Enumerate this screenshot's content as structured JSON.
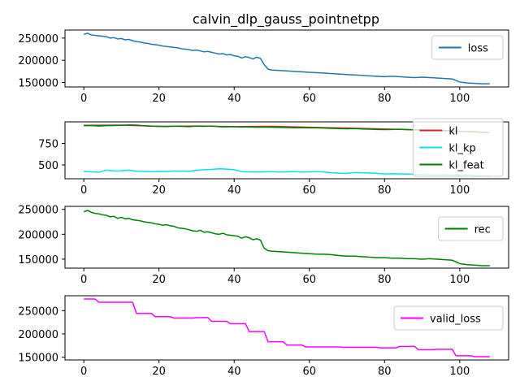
{
  "chart_data": {
    "title": "calvin_dlp_gauss_pointnetpp",
    "panels": [
      {
        "type": "line",
        "name": "loss-panel",
        "xlim": [
          -5,
          113
        ],
        "ylim": [
          140000,
          268000
        ],
        "xticks": [
          0,
          20,
          40,
          60,
          80,
          100
        ],
        "xtick_labels": [
          "0",
          "20",
          "40",
          "60",
          "80",
          "100"
        ],
        "yticks": [
          150000,
          200000,
          250000
        ],
        "ytick_labels": [
          "150000",
          "200000",
          "250000"
        ],
        "legend_position": "upper right",
        "series": [
          {
            "name": "loss",
            "color": "#1f77b4",
            "x": [
              0,
              1,
              2,
              3,
              4,
              5,
              6,
              7,
              8,
              9,
              10,
              11,
              12,
              13,
              14,
              15,
              16,
              17,
              18,
              19,
              20,
              21,
              22,
              23,
              24,
              25,
              26,
              27,
              28,
              29,
              30,
              31,
              32,
              33,
              34,
              35,
              36,
              37,
              38,
              39,
              40,
              41,
              42,
              43,
              44,
              45,
              46,
              47,
              48,
              49,
              50,
              52,
              54,
              56,
              58,
              60,
              62,
              64,
              66,
              68,
              70,
              72,
              74,
              76,
              78,
              80,
              82,
              84,
              86,
              88,
              90,
              92,
              94,
              96,
              98,
              100,
              102,
              104,
              106,
              108
            ],
            "y": [
              258000,
              261000,
              257000,
              256000,
              255000,
              254000,
              253000,
              250000,
              251000,
              248000,
              249000,
              246000,
              247000,
              244000,
              242000,
              241000,
              239000,
              238000,
              236000,
              235000,
              234000,
              232000,
              231000,
              230000,
              229000,
              228000,
              226000,
              225000,
              224000,
              222000,
              223000,
              221000,
              219000,
              220000,
              218000,
              216000,
              214000,
              215000,
              212000,
              213000,
              210000,
              209000,
              205000,
              208000,
              206000,
              203000,
              207000,
              204000,
              190000,
              180000,
              178000,
              177000,
              176000,
              175000,
              174000,
              173000,
              172000,
              171000,
              170000,
              169000,
              168000,
              167000,
              166000,
              165000,
              164000,
              163000,
              164000,
              163000,
              162000,
              161000,
              162000,
              161000,
              160000,
              159000,
              158000,
              151000,
              149000,
              148000,
              147000,
              147000
            ]
          }
        ]
      },
      {
        "type": "line",
        "name": "kl-panel",
        "xlim": [
          -5,
          113
        ],
        "ylim": [
          340,
          1000
        ],
        "xticks": [
          0,
          20,
          40,
          60,
          80,
          100
        ],
        "xtick_labels": [
          "0",
          "20",
          "40",
          "60",
          "80",
          "100"
        ],
        "yticks": [
          500,
          750
        ],
        "ytick_labels": [
          "500",
          "750"
        ],
        "legend_position": "upper right",
        "series": [
          {
            "name": "kl",
            "color": "#d62728",
            "x": [
              0,
              10,
              20,
              30,
              40,
              50,
              60,
              70,
              80,
              90,
              100,
              108
            ],
            "y": [
              960,
              962,
              948,
              952,
              945,
              948,
              938,
              928,
              918,
              905,
              890,
              876
            ]
          },
          {
            "name": "kl_kp",
            "color": "#00e5ee",
            "x": [
              0,
              2,
              4,
              6,
              8,
              10,
              12,
              14,
              16,
              18,
              20,
              22,
              24,
              26,
              28,
              30,
              32,
              34,
              36,
              38,
              40,
              42,
              44,
              46,
              48,
              50,
              52,
              54,
              56,
              58,
              60,
              62,
              64,
              66,
              68,
              70,
              72,
              74,
              76,
              78,
              80,
              82,
              84,
              86,
              88,
              90,
              92,
              94,
              96,
              98,
              100,
              102,
              104,
              106,
              108
            ],
            "y": [
              425,
              420,
              415,
              440,
              430,
              432,
              440,
              428,
              425,
              422,
              425,
              424,
              430,
              428,
              426,
              438,
              445,
              448,
              455,
              452,
              445,
              422,
              420,
              418,
              420,
              422,
              418,
              420,
              422,
              418,
              420,
              422,
              418,
              410,
              404,
              402,
              412,
              410,
              406,
              402,
              395,
              398,
              396,
              394,
              392,
              392,
              388,
              385,
              390,
              384,
              380,
              388,
              374,
              372,
              370
            ]
          },
          {
            "name": "kl_feat",
            "color": "#008000",
            "x": [
              0,
              2,
              4,
              6,
              8,
              10,
              12,
              14,
              16,
              18,
              20,
              22,
              24,
              26,
              28,
              30,
              32,
              34,
              36,
              38,
              40,
              42,
              44,
              46,
              48,
              50,
              52,
              54,
              56,
              58,
              60,
              62,
              64,
              66,
              68,
              70,
              72,
              74,
              76,
              78,
              80,
              82,
              84,
              86,
              88,
              90,
              92,
              94,
              96,
              98,
              100,
              102,
              104,
              106,
              108
            ],
            "y": [
              955,
              958,
              952,
              956,
              958,
              960,
              965,
              962,
              955,
              950,
              948,
              946,
              950,
              948,
              945,
              950,
              948,
              952,
              944,
              942,
              945,
              940,
              942,
              938,
              940,
              938,
              936,
              934,
              932,
              932,
              930,
              930,
              928,
              925,
              922,
              920,
              922,
              918,
              915,
              912,
              910,
              912,
              914,
              910,
              908,
              905,
              902,
              900,
              898,
              895,
              890,
              888,
              885,
              880,
              876
            ]
          }
        ]
      },
      {
        "type": "line",
        "name": "rec-panel",
        "xlim": [
          -5,
          113
        ],
        "ylim": [
          132000,
          256000
        ],
        "xticks": [
          0,
          20,
          40,
          60,
          80,
          100
        ],
        "xtick_labels": [
          "0",
          "20",
          "40",
          "60",
          "80",
          "100"
        ],
        "yticks": [
          150000,
          200000,
          250000
        ],
        "ytick_labels": [
          "150000",
          "200000",
          "250000"
        ],
        "legend_position": "upper right",
        "series": [
          {
            "name": "rec",
            "color": "#008000",
            "x": [
              0,
              1,
              2,
              3,
              4,
              5,
              6,
              7,
              8,
              9,
              10,
              11,
              12,
              13,
              14,
              15,
              16,
              17,
              18,
              19,
              20,
              21,
              22,
              23,
              24,
              25,
              26,
              27,
              28,
              29,
              30,
              31,
              32,
              33,
              34,
              35,
              36,
              37,
              38,
              39,
              40,
              41,
              42,
              43,
              44,
              45,
              46,
              47,
              48,
              49,
              50,
              52,
              54,
              56,
              58,
              60,
              62,
              64,
              66,
              68,
              70,
              72,
              74,
              76,
              78,
              80,
              82,
              84,
              86,
              88,
              90,
              92,
              94,
              96,
              98,
              100,
              102,
              104,
              106,
              108
            ],
            "y": [
              245000,
              248000,
              244000,
              242000,
              241000,
              239000,
              238000,
              235000,
              236000,
              232000,
              234000,
              231000,
              232000,
              229000,
              228000,
              227000,
              225000,
              224000,
              223000,
              221000,
              220000,
              218000,
              219000,
              217000,
              216000,
              213000,
              212000,
              211000,
              209000,
              207000,
              206000,
              208000,
              204000,
              205000,
              203000,
              201000,
              200000,
              202000,
              199000,
              198000,
              197000,
              196000,
              192000,
              195000,
              193000,
              189000,
              191000,
              188000,
              172000,
              167000,
              166000,
              165000,
              164000,
              163000,
              162000,
              161000,
              160000,
              160000,
              159000,
              157000,
              156000,
              156000,
              155000,
              154000,
              153000,
              153000,
              152000,
              152000,
              151000,
              151000,
              150000,
              151000,
              150000,
              149000,
              148000,
              141000,
              139000,
              138000,
              137000,
              137000
            ]
          }
        ]
      },
      {
        "type": "line",
        "name": "valid-loss-panel",
        "xlim": [
          -5,
          113
        ],
        "ylim": [
          144000,
          282000
        ],
        "xticks": [
          0,
          20,
          40,
          60,
          80,
          100
        ],
        "xtick_labels": [
          "0",
          "20",
          "40",
          "60",
          "80",
          "100"
        ],
        "yticks": [
          150000,
          200000,
          250000
        ],
        "ytick_labels": [
          "150000",
          "200000",
          "250000"
        ],
        "legend_position": "upper right",
        "series": [
          {
            "name": "valid_loss",
            "color": "#ff00ff",
            "x": [
              0,
              3,
              4,
              13,
              14,
              18,
              19,
              23,
              24,
              29,
              30,
              33,
              34,
              38,
              39,
              43,
              44,
              48,
              49,
              53,
              54,
              58,
              59,
              68,
              69,
              78,
              79,
              83,
              84,
              88,
              89,
              93,
              94,
              98,
              99,
              103,
              104,
              108
            ],
            "y": [
              275000,
              275000,
              268000,
              268000,
              244000,
              244000,
              237000,
              237000,
              234000,
              234000,
              235000,
              235000,
              227000,
              227000,
              222000,
              222000,
              205000,
              205000,
              183000,
              183000,
              176000,
              176000,
              172000,
              172000,
              171000,
              171000,
              170000,
              170000,
              173000,
              173000,
              166000,
              166000,
              167000,
              167000,
              153000,
              153000,
              151000,
              151000
            ]
          }
        ]
      }
    ]
  }
}
